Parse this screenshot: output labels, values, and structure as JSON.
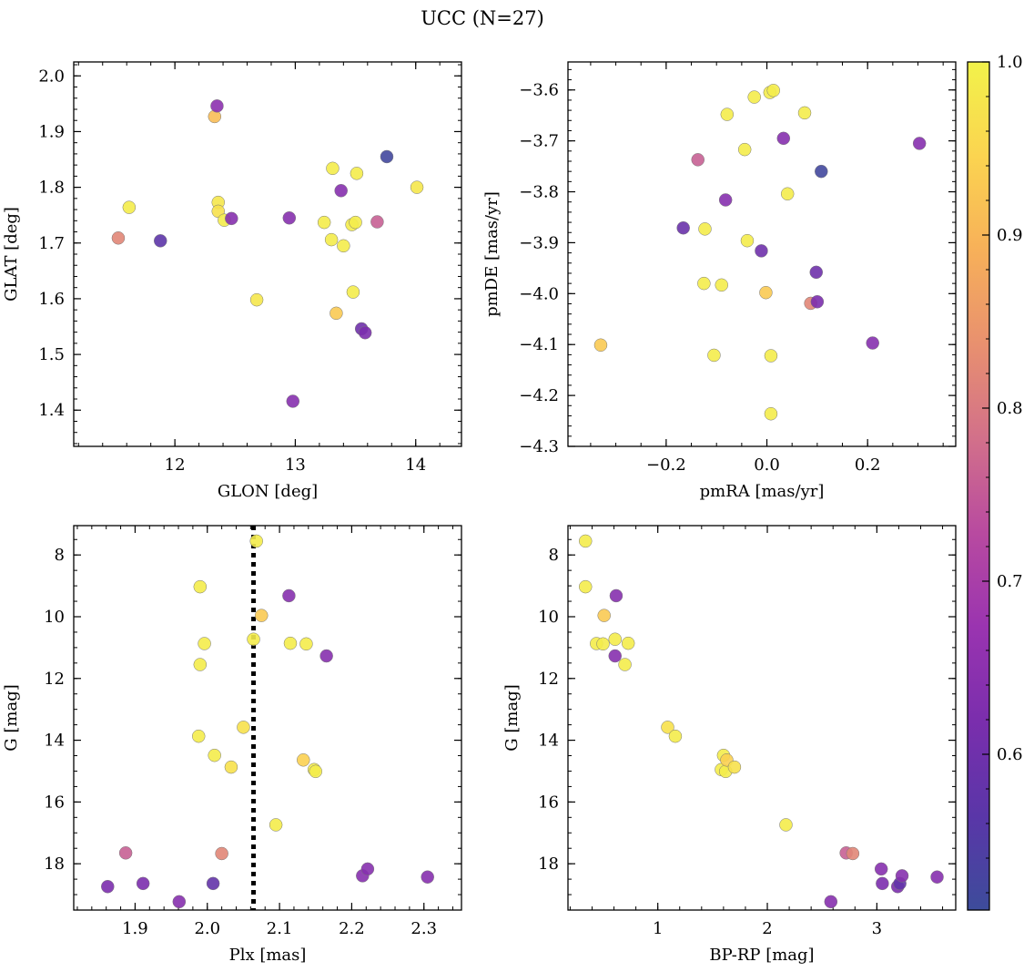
{
  "title": "UCC (N=27)",
  "chart_data": [
    {
      "id": "p1",
      "type": "scatter",
      "xlabel": "GLON [deg]",
      "ylabel": "GLAT [deg]",
      "xlim": [
        11.16,
        14.38
      ],
      "ylim": [
        1.335,
        2.025
      ],
      "xticks": [
        12,
        13,
        14
      ],
      "xticklabels": [
        "12",
        "13",
        "14"
      ],
      "yticks": [
        1.4,
        1.5,
        1.6,
        1.7,
        1.8,
        1.9,
        2.0
      ],
      "yticklabels": [
        "1.4",
        "1.5",
        "1.6",
        "1.7",
        "1.8",
        "1.9",
        "2.0"
      ],
      "y_inverted": false,
      "points": [
        {
          "x": 11.53,
          "y": 1.709,
          "c": 0.82
        },
        {
          "x": 11.62,
          "y": 1.764,
          "c": 0.99
        },
        {
          "x": 11.88,
          "y": 1.704,
          "c": 0.57
        },
        {
          "x": 12.33,
          "y": 1.927,
          "c": 0.91
        },
        {
          "x": 12.35,
          "y": 1.946,
          "c": 0.65
        },
        {
          "x": 12.36,
          "y": 1.773,
          "c": 0.98
        },
        {
          "x": 12.36,
          "y": 1.757,
          "c": 0.97
        },
        {
          "x": 12.41,
          "y": 1.741,
          "c": 0.99
        },
        {
          "x": 12.47,
          "y": 1.744,
          "c": 0.64
        },
        {
          "x": 12.68,
          "y": 1.598,
          "c": 0.98
        },
        {
          "x": 12.95,
          "y": 1.745,
          "c": 0.64
        },
        {
          "x": 12.98,
          "y": 1.416,
          "c": 0.64
        },
        {
          "x": 13.24,
          "y": 1.737,
          "c": 0.99
        },
        {
          "x": 13.3,
          "y": 1.706,
          "c": 0.99
        },
        {
          "x": 13.31,
          "y": 1.834,
          "c": 0.99
        },
        {
          "x": 13.34,
          "y": 1.574,
          "c": 0.93
        },
        {
          "x": 13.38,
          "y": 1.794,
          "c": 0.64
        },
        {
          "x": 13.4,
          "y": 1.695,
          "c": 0.99
        },
        {
          "x": 13.47,
          "y": 1.733,
          "c": 0.99
        },
        {
          "x": 13.48,
          "y": 1.612,
          "c": 0.99
        },
        {
          "x": 13.5,
          "y": 1.737,
          "c": 0.99
        },
        {
          "x": 13.51,
          "y": 1.825,
          "c": 0.99
        },
        {
          "x": 13.55,
          "y": 1.546,
          "c": 0.6
        },
        {
          "x": 13.58,
          "y": 1.539,
          "c": 0.62
        },
        {
          "x": 13.68,
          "y": 1.738,
          "c": 0.76
        },
        {
          "x": 13.76,
          "y": 1.855,
          "c": 0.52
        },
        {
          "x": 14.01,
          "y": 1.8,
          "c": 0.98
        }
      ]
    },
    {
      "id": "p2",
      "type": "scatter",
      "xlabel": "pmRA [mas/yr]",
      "ylabel": "pmDE [mas/yr]",
      "xlim": [
        -0.395,
        0.375
      ],
      "ylim": [
        -4.3,
        -3.545
      ],
      "xticks": [
        -0.2,
        0.0,
        0.2
      ],
      "xticklabels": [
        "−0.2",
        "0.0",
        "0.2"
      ],
      "yticks": [
        -4.3,
        -4.2,
        -4.1,
        -4.0,
        -3.9,
        -3.8,
        -3.7,
        -3.6
      ],
      "yticklabels": [
        "−4.3",
        "−4.2",
        "−4.1",
        "−4.0",
        "−3.9",
        "−3.8",
        "−3.7",
        "−3.6"
      ],
      "y_inverted": false,
      "points": [
        {
          "x": -0.33,
          "y": -4.101,
          "c": 0.93
        },
        {
          "x": -0.166,
          "y": -3.871,
          "c": 0.59
        },
        {
          "x": -0.137,
          "y": -3.737,
          "c": 0.76
        },
        {
          "x": -0.125,
          "y": -3.98,
          "c": 0.99
        },
        {
          "x": -0.123,
          "y": -3.873,
          "c": 0.99
        },
        {
          "x": -0.105,
          "y": -4.121,
          "c": 0.99
        },
        {
          "x": -0.09,
          "y": -3.983,
          "c": 0.99
        },
        {
          "x": -0.082,
          "y": -3.816,
          "c": 0.64
        },
        {
          "x": -0.079,
          "y": -3.648,
          "c": 0.99
        },
        {
          "x": -0.044,
          "y": -3.717,
          "c": 0.99
        },
        {
          "x": -0.039,
          "y": -3.896,
          "c": 0.99
        },
        {
          "x": -0.025,
          "y": -3.614,
          "c": 0.99
        },
        {
          "x": -0.011,
          "y": -3.916,
          "c": 0.6
        },
        {
          "x": -0.002,
          "y": -3.998,
          "c": 0.93
        },
        {
          "x": 0.006,
          "y": -3.605,
          "c": 0.99
        },
        {
          "x": 0.008,
          "y": -4.122,
          "c": 0.99
        },
        {
          "x": 0.008,
          "y": -4.236,
          "c": 0.99
        },
        {
          "x": 0.013,
          "y": -3.601,
          "c": 0.99
        },
        {
          "x": 0.033,
          "y": -3.695,
          "c": 0.64
        },
        {
          "x": 0.041,
          "y": -3.804,
          "c": 0.99
        },
        {
          "x": 0.075,
          "y": -3.645,
          "c": 0.99
        },
        {
          "x": 0.087,
          "y": -4.019,
          "c": 0.82
        },
        {
          "x": 0.098,
          "y": -3.958,
          "c": 0.6
        },
        {
          "x": 0.1,
          "y": -4.016,
          "c": 0.62
        },
        {
          "x": 0.108,
          "y": -3.76,
          "c": 0.52
        },
        {
          "x": 0.21,
          "y": -4.097,
          "c": 0.64
        },
        {
          "x": 0.303,
          "y": -3.705,
          "c": 0.64
        }
      ]
    },
    {
      "id": "p3",
      "type": "scatter",
      "xlabel": "Plx [mas]",
      "ylabel": "G [mag]",
      "xlim": [
        1.815,
        2.352
      ],
      "ylim": [
        19.5,
        7.05
      ],
      "xticks": [
        1.9,
        2.0,
        2.1,
        2.2,
        2.3
      ],
      "xticklabels": [
        "1.9",
        "2.0",
        "2.1",
        "2.2",
        "2.3"
      ],
      "yticks": [
        8,
        10,
        12,
        14,
        16,
        18
      ],
      "yticklabels": [
        "8",
        "10",
        "12",
        "14",
        "16",
        "18"
      ],
      "y_inverted": true,
      "vline": 2.064,
      "points": [
        {
          "x": 1.862,
          "y": 18.74,
          "c": 0.62
        },
        {
          "x": 1.887,
          "y": 17.65,
          "c": 0.76
        },
        {
          "x": 1.911,
          "y": 18.64,
          "c": 0.62
        },
        {
          "x": 1.961,
          "y": 19.23,
          "c": 0.64
        },
        {
          "x": 1.988,
          "y": 13.87,
          "c": 0.99
        },
        {
          "x": 1.99,
          "y": 9.03,
          "c": 0.99
        },
        {
          "x": 1.99,
          "y": 11.55,
          "c": 0.99
        },
        {
          "x": 1.996,
          "y": 10.87,
          "c": 0.99
        },
        {
          "x": 2.008,
          "y": 18.64,
          "c": 0.58
        },
        {
          "x": 2.01,
          "y": 14.49,
          "c": 0.99
        },
        {
          "x": 2.02,
          "y": 17.67,
          "c": 0.82
        },
        {
          "x": 2.033,
          "y": 14.87,
          "c": 0.97
        },
        {
          "x": 2.05,
          "y": 13.58,
          "c": 0.97
        },
        {
          "x": 2.064,
          "y": 10.73,
          "c": 0.99
        },
        {
          "x": 2.068,
          "y": 7.55,
          "c": 0.99
        },
        {
          "x": 2.075,
          "y": 9.96,
          "c": 0.93
        },
        {
          "x": 2.095,
          "y": 16.74,
          "c": 0.99
        },
        {
          "x": 2.113,
          "y": 9.32,
          "c": 0.64
        },
        {
          "x": 2.115,
          "y": 10.86,
          "c": 0.99
        },
        {
          "x": 2.133,
          "y": 14.64,
          "c": 0.94
        },
        {
          "x": 2.137,
          "y": 10.88,
          "c": 0.99
        },
        {
          "x": 2.148,
          "y": 14.95,
          "c": 0.99
        },
        {
          "x": 2.15,
          "y": 15.01,
          "c": 0.99
        },
        {
          "x": 2.165,
          "y": 11.27,
          "c": 0.64
        },
        {
          "x": 2.215,
          "y": 18.39,
          "c": 0.64
        },
        {
          "x": 2.222,
          "y": 18.17,
          "c": 0.64
        },
        {
          "x": 2.305,
          "y": 18.43,
          "c": 0.64
        }
      ]
    },
    {
      "id": "p4",
      "type": "scatter",
      "xlabel": "BP-RP [mag]",
      "ylabel": "G [mag]",
      "xlim": [
        0.18,
        3.72
      ],
      "ylim": [
        19.5,
        7.05
      ],
      "xticks": [
        1,
        2,
        3
      ],
      "xticklabels": [
        "1",
        "2",
        "3"
      ],
      "yticks": [
        8,
        10,
        12,
        14,
        16,
        18
      ],
      "yticklabels": [
        "8",
        "10",
        "12",
        "14",
        "16",
        "18"
      ],
      "y_inverted": true,
      "points": [
        {
          "x": 0.34,
          "y": 7.55,
          "c": 0.99
        },
        {
          "x": 0.34,
          "y": 9.03,
          "c": 0.99
        },
        {
          "x": 0.44,
          "y": 10.87,
          "c": 0.99
        },
        {
          "x": 0.5,
          "y": 10.88,
          "c": 0.99
        },
        {
          "x": 0.51,
          "y": 9.96,
          "c": 0.93
        },
        {
          "x": 0.61,
          "y": 10.73,
          "c": 0.99
        },
        {
          "x": 0.61,
          "y": 11.27,
          "c": 0.64
        },
        {
          "x": 0.62,
          "y": 9.32,
          "c": 0.64
        },
        {
          "x": 0.7,
          "y": 11.55,
          "c": 0.99
        },
        {
          "x": 0.73,
          "y": 10.86,
          "c": 0.99
        },
        {
          "x": 1.09,
          "y": 13.58,
          "c": 0.97
        },
        {
          "x": 1.16,
          "y": 13.87,
          "c": 0.99
        },
        {
          "x": 1.58,
          "y": 14.95,
          "c": 0.99
        },
        {
          "x": 1.6,
          "y": 14.49,
          "c": 0.99
        },
        {
          "x": 1.62,
          "y": 15.01,
          "c": 0.99
        },
        {
          "x": 1.63,
          "y": 14.64,
          "c": 0.94
        },
        {
          "x": 1.7,
          "y": 14.87,
          "c": 0.97
        },
        {
          "x": 2.17,
          "y": 16.74,
          "c": 0.99
        },
        {
          "x": 2.58,
          "y": 19.23,
          "c": 0.64
        },
        {
          "x": 2.72,
          "y": 17.65,
          "c": 0.76
        },
        {
          "x": 2.78,
          "y": 17.67,
          "c": 0.82
        },
        {
          "x": 3.04,
          "y": 18.17,
          "c": 0.64
        },
        {
          "x": 3.05,
          "y": 18.64,
          "c": 0.62
        },
        {
          "x": 3.19,
          "y": 18.74,
          "c": 0.62
        },
        {
          "x": 3.21,
          "y": 18.64,
          "c": 0.58
        },
        {
          "x": 3.23,
          "y": 18.39,
          "c": 0.64
        },
        {
          "x": 3.55,
          "y": 18.43,
          "c": 0.64
        }
      ]
    }
  ],
  "colorbar": {
    "colormap": "plasma",
    "range": [
      0.51,
      1.0
    ],
    "ticks": [
      0.6,
      0.7,
      0.8,
      0.9,
      1.0
    ],
    "ticklabels": [
      "0.6",
      "0.7",
      "0.8",
      "0.9",
      "1.0"
    ],
    "stops": [
      "#3d4c9b",
      "#5a36a8",
      "#7a2ead",
      "#9a34b0",
      "#b84aa0",
      "#d2708a",
      "#e8906f",
      "#f7b059",
      "#fbd450",
      "#f2f24a"
    ]
  }
}
